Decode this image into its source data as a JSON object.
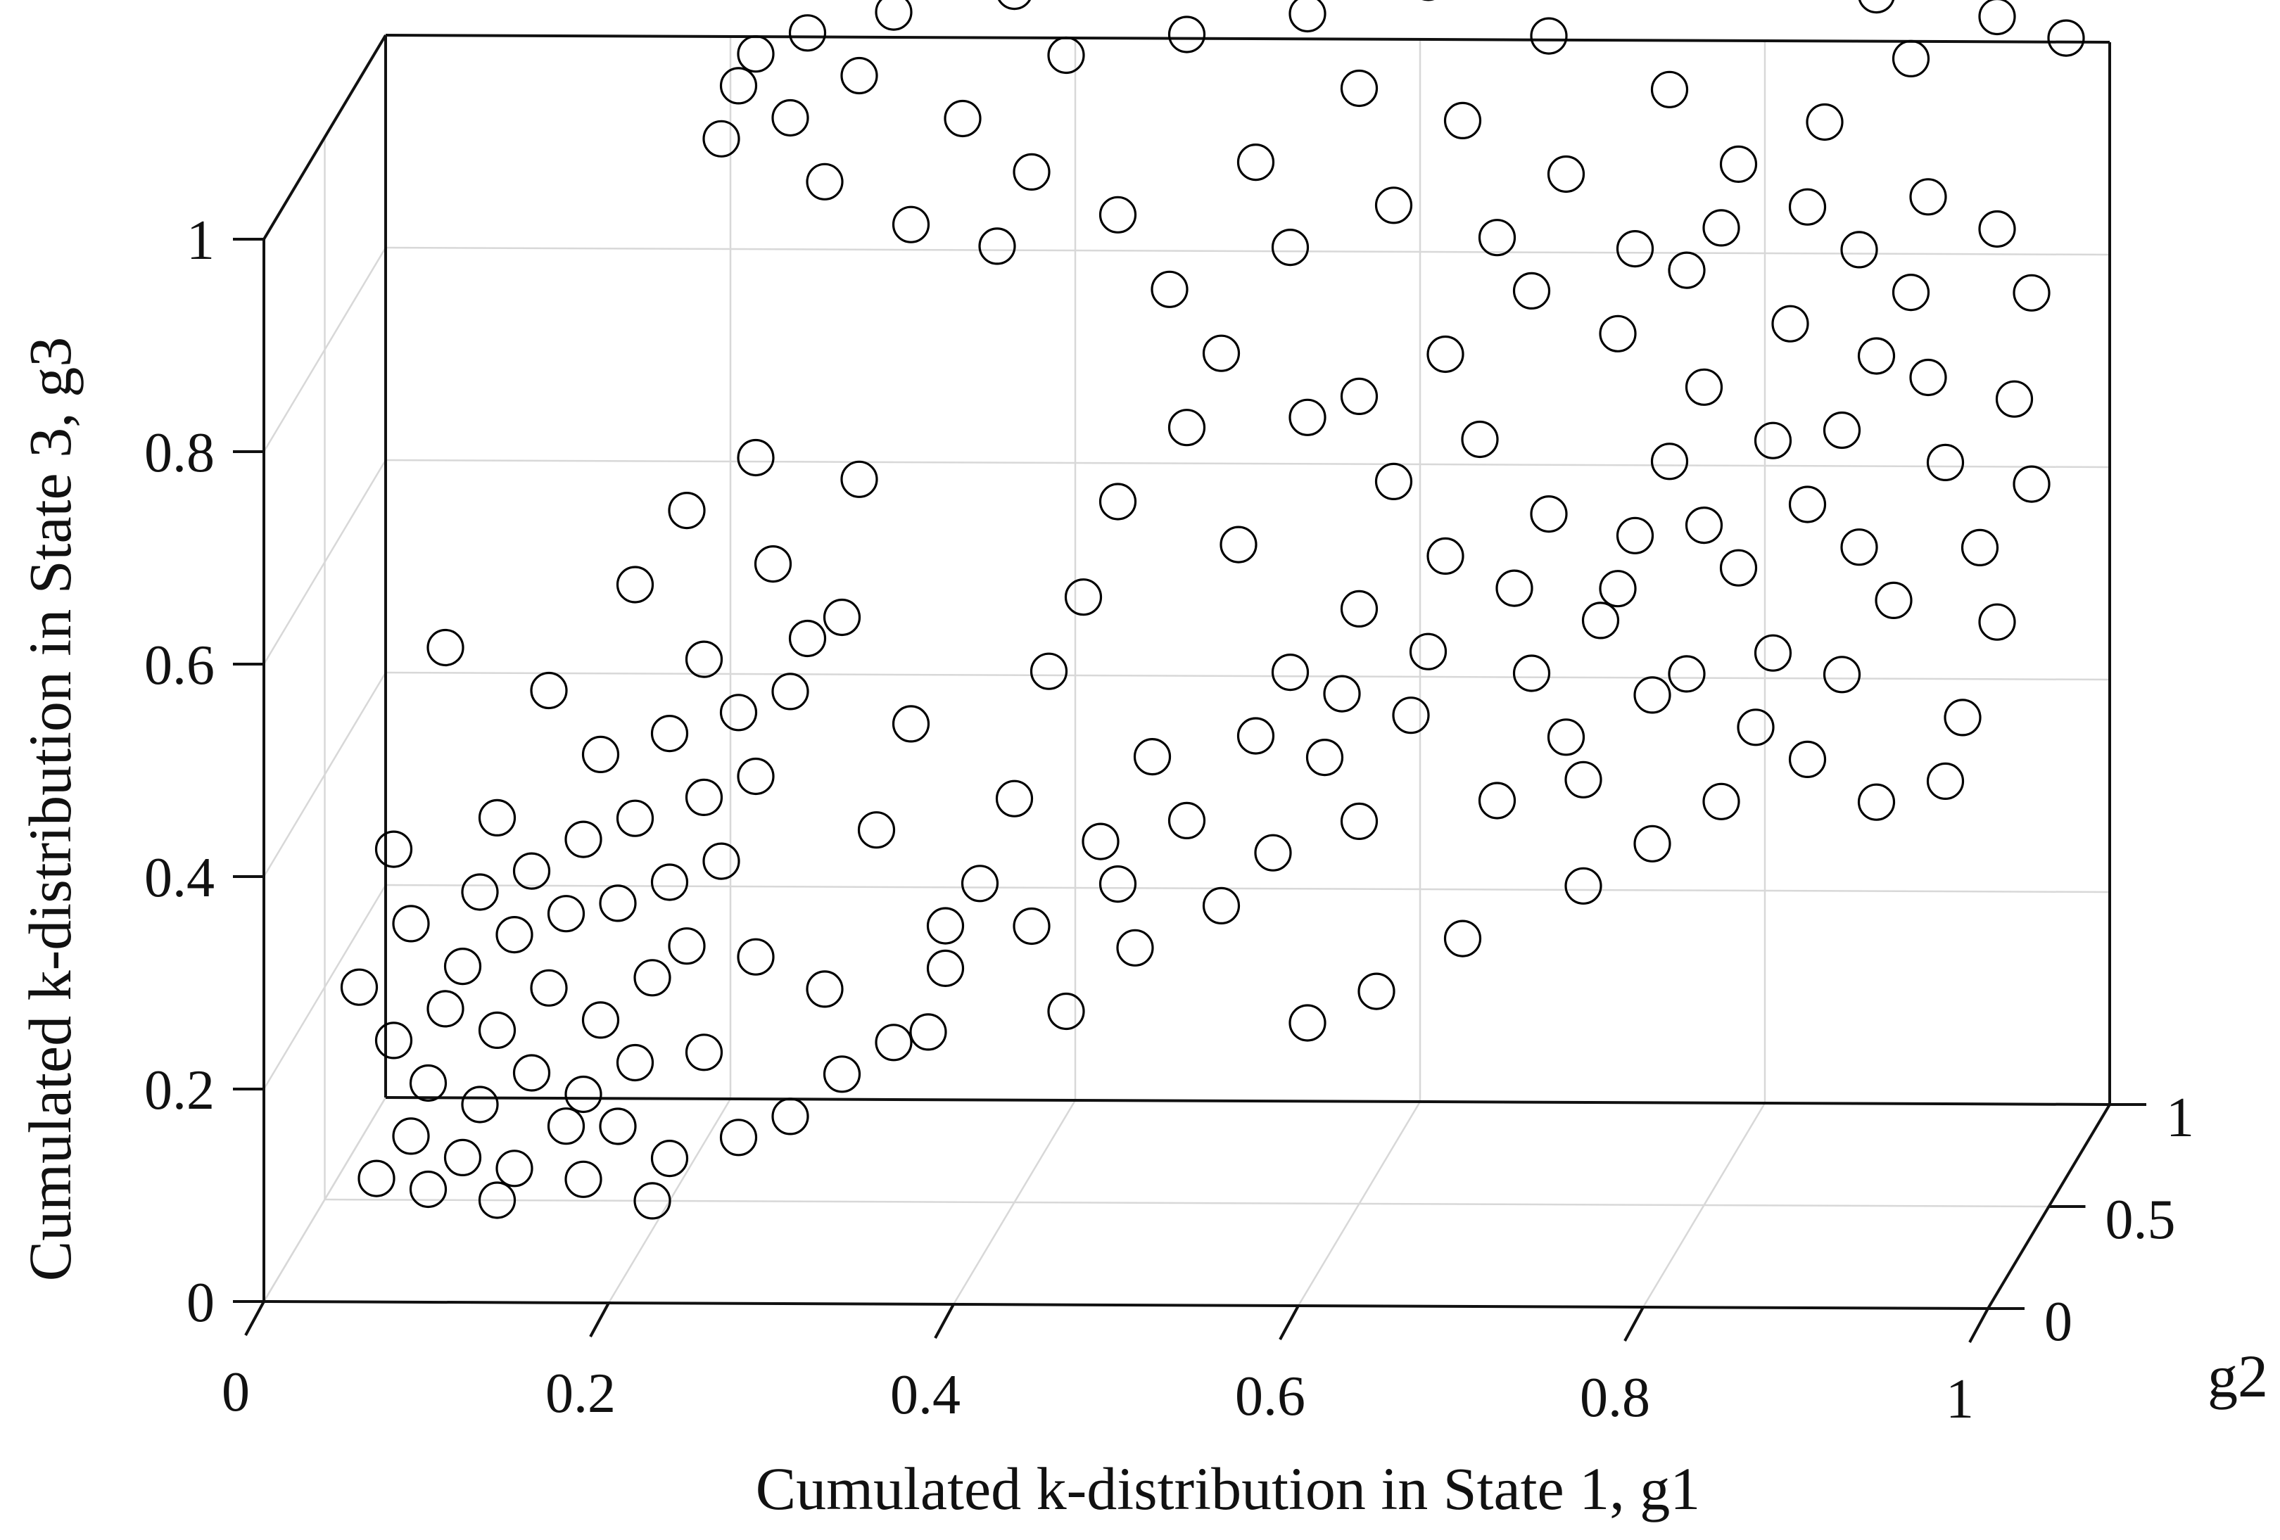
{
  "chart_data": {
    "type": "scatter",
    "dimensions": 3,
    "title": "",
    "xlabel": "Cumulated k-distribution in State 1, g1",
    "ylabel": "g2",
    "zlabel": "Cumulated k-distribution in State 3, g3",
    "xlim": [
      0,
      1
    ],
    "ylim": [
      0,
      1
    ],
    "zlim": [
      0,
      1
    ],
    "xticks": [
      "0",
      "0.2",
      "0.4",
      "0.6",
      "0.8",
      "1"
    ],
    "yticks": [
      "0",
      "0.5",
      "1"
    ],
    "zticks": [
      "0",
      "0.2",
      "0.4",
      "0.6",
      "0.8",
      "1"
    ],
    "grid": true,
    "marker": "open-circle",
    "marker_color": "#000000",
    "series": [
      {
        "values": [
          [
            0.03,
            0.5,
            0.02
          ],
          [
            0.05,
            0.5,
            0.06
          ],
          [
            0.08,
            0.5,
            0.04
          ],
          [
            0.11,
            0.5,
            0.03
          ],
          [
            0.14,
            0.5,
            0.07
          ],
          [
            0.06,
            0.5,
            0.11
          ],
          [
            0.09,
            0.5,
            0.09
          ],
          [
            0.12,
            0.5,
            0.12
          ],
          [
            0.15,
            0.5,
            0.1
          ],
          [
            0.18,
            0.5,
            0.13
          ],
          [
            0.04,
            0.5,
            0.15
          ],
          [
            0.07,
            0.5,
            0.18
          ],
          [
            0.1,
            0.5,
            0.16
          ],
          [
            0.13,
            0.5,
            0.2
          ],
          [
            0.16,
            0.5,
            0.17
          ],
          [
            0.19,
            0.5,
            0.21
          ],
          [
            0.21,
            0.5,
            0.24
          ],
          [
            0.08,
            0.5,
            0.22
          ],
          [
            0.11,
            0.5,
            0.25
          ],
          [
            0.14,
            0.5,
            0.27
          ],
          [
            0.17,
            0.5,
            0.28
          ],
          [
            0.2,
            0.5,
            0.3
          ],
          [
            0.23,
            0.5,
            0.32
          ],
          [
            0.12,
            0.5,
            0.31
          ],
          [
            0.15,
            0.5,
            0.34
          ],
          [
            0.18,
            0.5,
            0.36
          ],
          [
            0.22,
            0.5,
            0.38
          ],
          [
            0.25,
            0.5,
            0.4
          ],
          [
            0.16,
            0.5,
            0.42
          ],
          [
            0.2,
            0.5,
            0.44
          ],
          [
            0.24,
            0.5,
            0.46
          ],
          [
            0.27,
            0.5,
            0.48
          ],
          [
            0.13,
            0.5,
            0.48
          ],
          [
            0.22,
            0.5,
            0.51
          ],
          [
            0.28,
            0.5,
            0.53
          ],
          [
            0.07,
            0.5,
            0.52
          ],
          [
            0.18,
            0.5,
            0.58
          ],
          [
            0.26,
            0.5,
            0.6
          ],
          [
            0.21,
            0.5,
            0.65
          ],
          [
            0.25,
            0.5,
            0.7
          ],
          [
            0.31,
            0.5,
            0.68
          ],
          [
            0.3,
            0.5,
            0.55
          ],
          [
            0.34,
            0.5,
            0.45
          ],
          [
            0.32,
            0.5,
            0.35
          ],
          [
            0.36,
            0.5,
            0.26
          ],
          [
            0.29,
            0.5,
            0.2
          ],
          [
            0.33,
            0.5,
            0.15
          ],
          [
            0.27,
            0.5,
            0.08
          ],
          [
            0.05,
            0.5,
            0.26
          ],
          [
            0.02,
            0.5,
            0.2
          ],
          [
            0.04,
            0.5,
            0.33
          ],
          [
            0.1,
            0.5,
            0.36
          ],
          [
            0.09,
            0.5,
            0.29
          ],
          [
            0.17,
            0.5,
            0.07
          ],
          [
            0.2,
            0.5,
            0.04
          ],
          [
            0.06,
            0.5,
            0.01
          ],
          [
            0.1,
            0.5,
            0.0
          ],
          [
            0.15,
            0.5,
            0.02
          ],
          [
            0.22,
            0.5,
            0.14
          ],
          [
            0.25,
            0.5,
            0.23
          ],
          [
            0.38,
            0.5,
            0.3
          ],
          [
            0.4,
            0.5,
            0.38
          ],
          [
            0.42,
            0.5,
            0.5
          ],
          [
            0.44,
            0.5,
            0.57
          ],
          [
            0.46,
            0.5,
            0.66
          ],
          [
            0.5,
            0.5,
            0.73
          ],
          [
            0.48,
            0.5,
            0.42
          ],
          [
            0.45,
            0.5,
            0.34
          ],
          [
            0.52,
            0.5,
            0.28
          ],
          [
            0.55,
            0.5,
            0.33
          ],
          [
            0.58,
            0.5,
            0.42
          ],
          [
            0.6,
            0.5,
            0.36
          ],
          [
            0.63,
            0.5,
            0.46
          ],
          [
            0.56,
            0.5,
            0.5
          ],
          [
            0.6,
            0.5,
            0.56
          ],
          [
            0.65,
            0.5,
            0.61
          ],
          [
            0.62,
            0.5,
            0.68
          ],
          [
            0.67,
            0.5,
            0.72
          ],
          [
            0.53,
            0.5,
            0.62
          ],
          [
            0.57,
            0.5,
            0.74
          ],
          [
            0.7,
            0.5,
            0.5
          ],
          [
            0.72,
            0.5,
            0.44
          ],
          [
            0.68,
            0.5,
            0.38
          ],
          [
            0.74,
            0.5,
            0.55
          ],
          [
            0.76,
            0.5,
            0.63
          ],
          [
            0.78,
            0.5,
            0.7
          ],
          [
            0.8,
            0.5,
            0.77
          ],
          [
            0.82,
            0.5,
            0.6
          ],
          [
            0.84,
            0.5,
            0.52
          ],
          [
            0.86,
            0.5,
            0.66
          ],
          [
            0.88,
            0.5,
            0.73
          ],
          [
            0.9,
            0.5,
            0.8
          ],
          [
            0.92,
            0.5,
            0.86
          ],
          [
            0.94,
            0.5,
            0.7
          ],
          [
            0.96,
            0.5,
            0.62
          ],
          [
            0.98,
            0.5,
            0.76
          ],
          [
            0.85,
            0.5,
            0.83
          ],
          [
            0.79,
            0.5,
            0.88
          ],
          [
            0.75,
            0.5,
            0.82
          ],
          [
            0.83,
            0.5,
            0.45
          ],
          [
            0.88,
            0.5,
            0.5
          ],
          [
            0.91,
            0.5,
            0.57
          ],
          [
            0.95,
            0.5,
            0.46
          ],
          [
            0.81,
            0.5,
            0.38
          ],
          [
            0.77,
            0.5,
            0.34
          ],
          [
            0.73,
            0.5,
            0.3
          ],
          [
            0.66,
            0.5,
            0.25
          ],
          [
            0.61,
            0.5,
            0.2
          ],
          [
            0.47,
            0.5,
            0.24
          ],
          [
            0.43,
            0.5,
            0.18
          ],
          [
            0.57,
            0.5,
            0.17
          ],
          [
            0.52,
            0.5,
            0.8
          ],
          [
            0.49,
            0.5,
            0.86
          ],
          [
            0.56,
            0.5,
            0.9
          ],
          [
            0.62,
            0.5,
            0.94
          ],
          [
            0.68,
            0.5,
            0.91
          ],
          [
            0.72,
            0.5,
            0.97
          ],
          [
            0.66,
            0.5,
            1.02
          ],
          [
            0.6,
            0.5,
            1.05
          ],
          [
            0.54,
            0.5,
            0.98
          ],
          [
            0.46,
            0.5,
            0.93
          ],
          [
            0.41,
            0.5,
            0.97
          ],
          [
            0.37,
            0.5,
            1.02
          ],
          [
            0.31,
            0.5,
            1.06
          ],
          [
            0.27,
            0.5,
            1.02
          ],
          [
            0.24,
            0.5,
            1.05
          ],
          [
            0.29,
            0.5,
            0.96
          ],
          [
            0.34,
            0.5,
            0.92
          ],
          [
            0.39,
            0.5,
            0.9
          ],
          [
            0.43,
            0.5,
            1.08
          ],
          [
            0.5,
            0.5,
            1.1
          ],
          [
            0.57,
            0.5,
            1.12
          ],
          [
            0.64,
            0.5,
            1.15
          ],
          [
            0.71,
            0.5,
            1.1
          ],
          [
            0.78,
            0.5,
            1.05
          ],
          [
            0.82,
            0.5,
            0.98
          ],
          [
            0.87,
            0.5,
            1.02
          ],
          [
            0.92,
            0.5,
            1.08
          ],
          [
            0.97,
            0.5,
            1.12
          ],
          [
            1.0,
            0.5,
            1.16
          ],
          [
            0.95,
            0.5,
            1.18
          ],
          [
            0.99,
            0.5,
            1.2
          ],
          [
            1.01,
            0.5,
            1.1
          ],
          [
            0.9,
            0.5,
            1.14
          ],
          [
            0.85,
            0.5,
            1.16
          ],
          [
            0.8,
            0.5,
            1.18
          ],
          [
            0.74,
            0.5,
            1.17
          ],
          [
            0.69,
            0.5,
            1.2
          ],
          [
            0.62,
            0.5,
            1.19
          ],
          [
            0.55,
            0.5,
            1.17
          ],
          [
            0.48,
            0.5,
            1.15
          ],
          [
            0.4,
            0.5,
            1.14
          ],
          [
            0.33,
            0.5,
            1.12
          ],
          [
            0.28,
            0.5,
            1.1
          ],
          [
            0.25,
            0.5,
            1.08
          ],
          [
            0.23,
            0.5,
            1.0
          ],
          [
            0.97,
            0.5,
            0.92
          ],
          [
            0.99,
            0.5,
            0.86
          ],
          [
            0.93,
            0.5,
            0.95
          ],
          [
            0.89,
            0.5,
            0.9
          ],
          [
            0.86,
            0.5,
            0.94
          ],
          [
            0.81,
            0.5,
            0.92
          ],
          [
            0.76,
            0.5,
            0.9
          ],
          [
            0.7,
            0.5,
            0.86
          ],
          [
            0.65,
            0.5,
            0.8
          ],
          [
            0.6,
            0.5,
            0.76
          ],
          [
            0.71,
            0.5,
            0.65
          ],
          [
            0.75,
            0.5,
            0.58
          ],
          [
            0.79,
            0.5,
            0.5
          ],
          [
            0.86,
            0.5,
            0.42
          ],
          [
            0.9,
            0.5,
            0.38
          ],
          [
            0.94,
            0.5,
            0.4
          ],
          [
            0.97,
            0.5,
            0.55
          ],
          [
            0.99,
            0.5,
            0.68
          ],
          [
            0.93,
            0.5,
            0.78
          ],
          [
            0.89,
            0.5,
            0.62
          ],
          [
            0.84,
            0.5,
            0.72
          ],
          [
            0.8,
            0.5,
            0.64
          ],
          [
            0.77,
            0.5,
            0.48
          ],
          [
            0.73,
            0.5,
            0.4
          ],
          [
            0.69,
            0.5,
            0.58
          ],
          [
            0.64,
            0.5,
            0.52
          ],
          [
            0.59,
            0.5,
            0.48
          ],
          [
            0.54,
            0.5,
            0.44
          ],
          [
            0.5,
            0.5,
            0.36
          ],
          [
            0.46,
            0.5,
            0.3
          ],
          [
            0.41,
            0.5,
            0.26
          ],
          [
            0.36,
            0.5,
            0.22
          ],
          [
            0.19,
            0.5,
            0.0
          ],
          [
            0.24,
            0.5,
            0.06
          ],
          [
            0.3,
            0.5,
            0.12
          ],
          [
            0.35,
            0.5,
            0.16
          ]
        ]
      }
    ]
  }
}
